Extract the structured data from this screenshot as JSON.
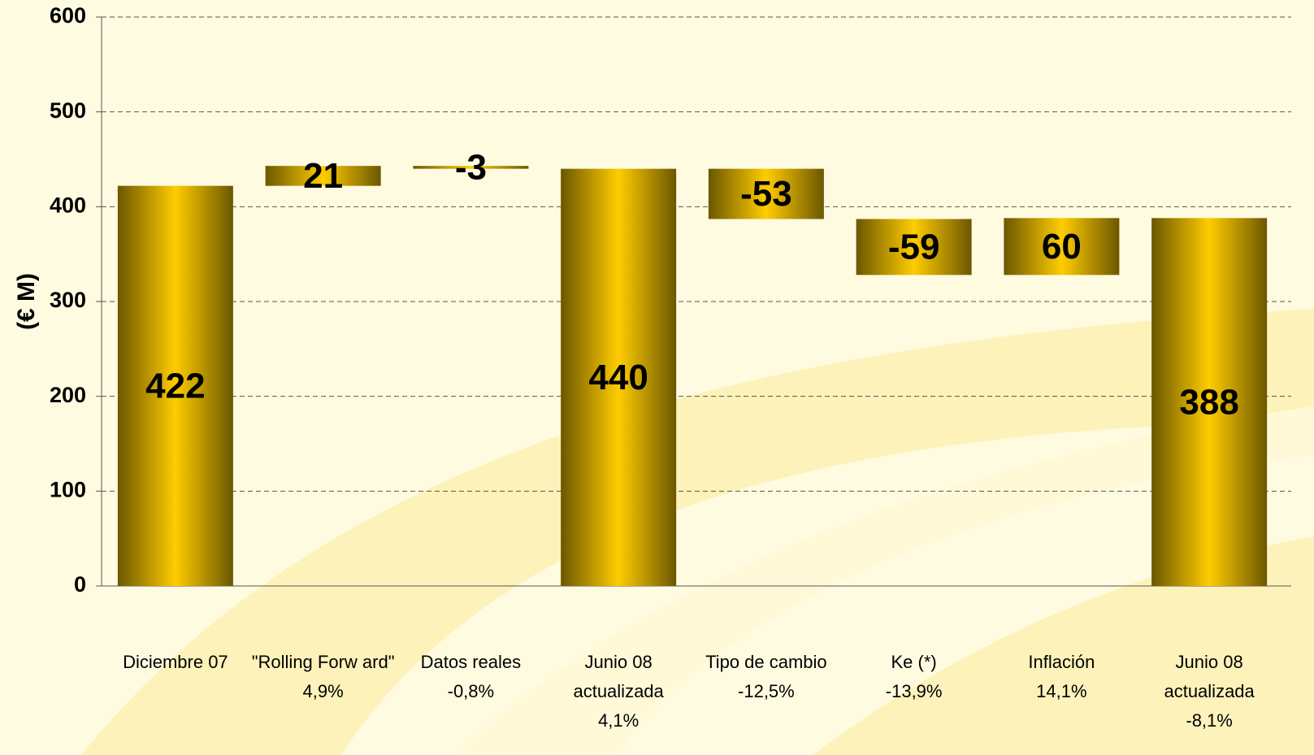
{
  "chart_data": {
    "type": "waterfall",
    "ylabel": "(€ M)",
    "categories": [
      [
        "Diciembre 07"
      ],
      [
        "\"Rolling Forw ard\"",
        "4,9%"
      ],
      [
        "Datos reales",
        "-0,8%"
      ],
      [
        "Junio 08",
        "actualizada",
        "4,1%"
      ],
      [
        "Tipo de cambio",
        "-12,5%"
      ],
      [
        "Ke (*)",
        "-13,9%"
      ],
      [
        "Inflación",
        "14,1%"
      ],
      [
        "Junio 08",
        "actualizada",
        "-8,1%"
      ]
    ],
    "values": [
      422,
      21,
      -3,
      440,
      -53,
      -59,
      60,
      388
    ],
    "is_total": [
      true,
      false,
      false,
      true,
      false,
      false,
      false,
      true
    ],
    "color": "#ffcc00",
    "edge_color": "#6b5700",
    "ylim": [
      0,
      600
    ],
    "yticks": [
      0,
      100,
      200,
      300,
      400,
      500,
      600
    ],
    "grid": true
  }
}
